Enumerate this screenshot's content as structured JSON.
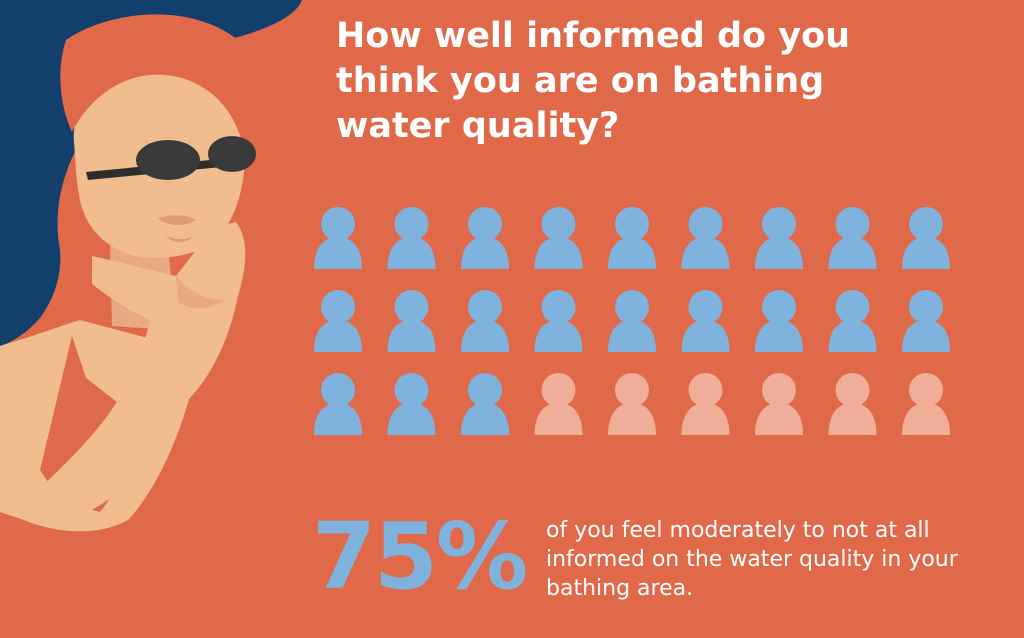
{
  "colors": {
    "background": "#e0694a",
    "informed_person": "#7fb3de",
    "uninformed_person": "#f0ad98",
    "hair": "#133f6d",
    "skin": "#f1bd8e",
    "text": "#ffffff",
    "stat_number": "#7fb3de"
  },
  "question": "How well informed do you think you are on bathing water quality?",
  "people_grid": {
    "rows": 3,
    "columns": 9,
    "total": 27,
    "informed_count": 21,
    "uninformed_count": 6,
    "icon": "person-icon"
  },
  "stat": {
    "value": "75%",
    "description": "of you feel moderately to not at all informed on the water quality in your bathing area."
  },
  "illustration": {
    "subject": "woman-with-sunglasses-thinking",
    "icons": [
      "hair-icon",
      "face-icon",
      "sunglasses-icon",
      "hand-icon"
    ]
  }
}
